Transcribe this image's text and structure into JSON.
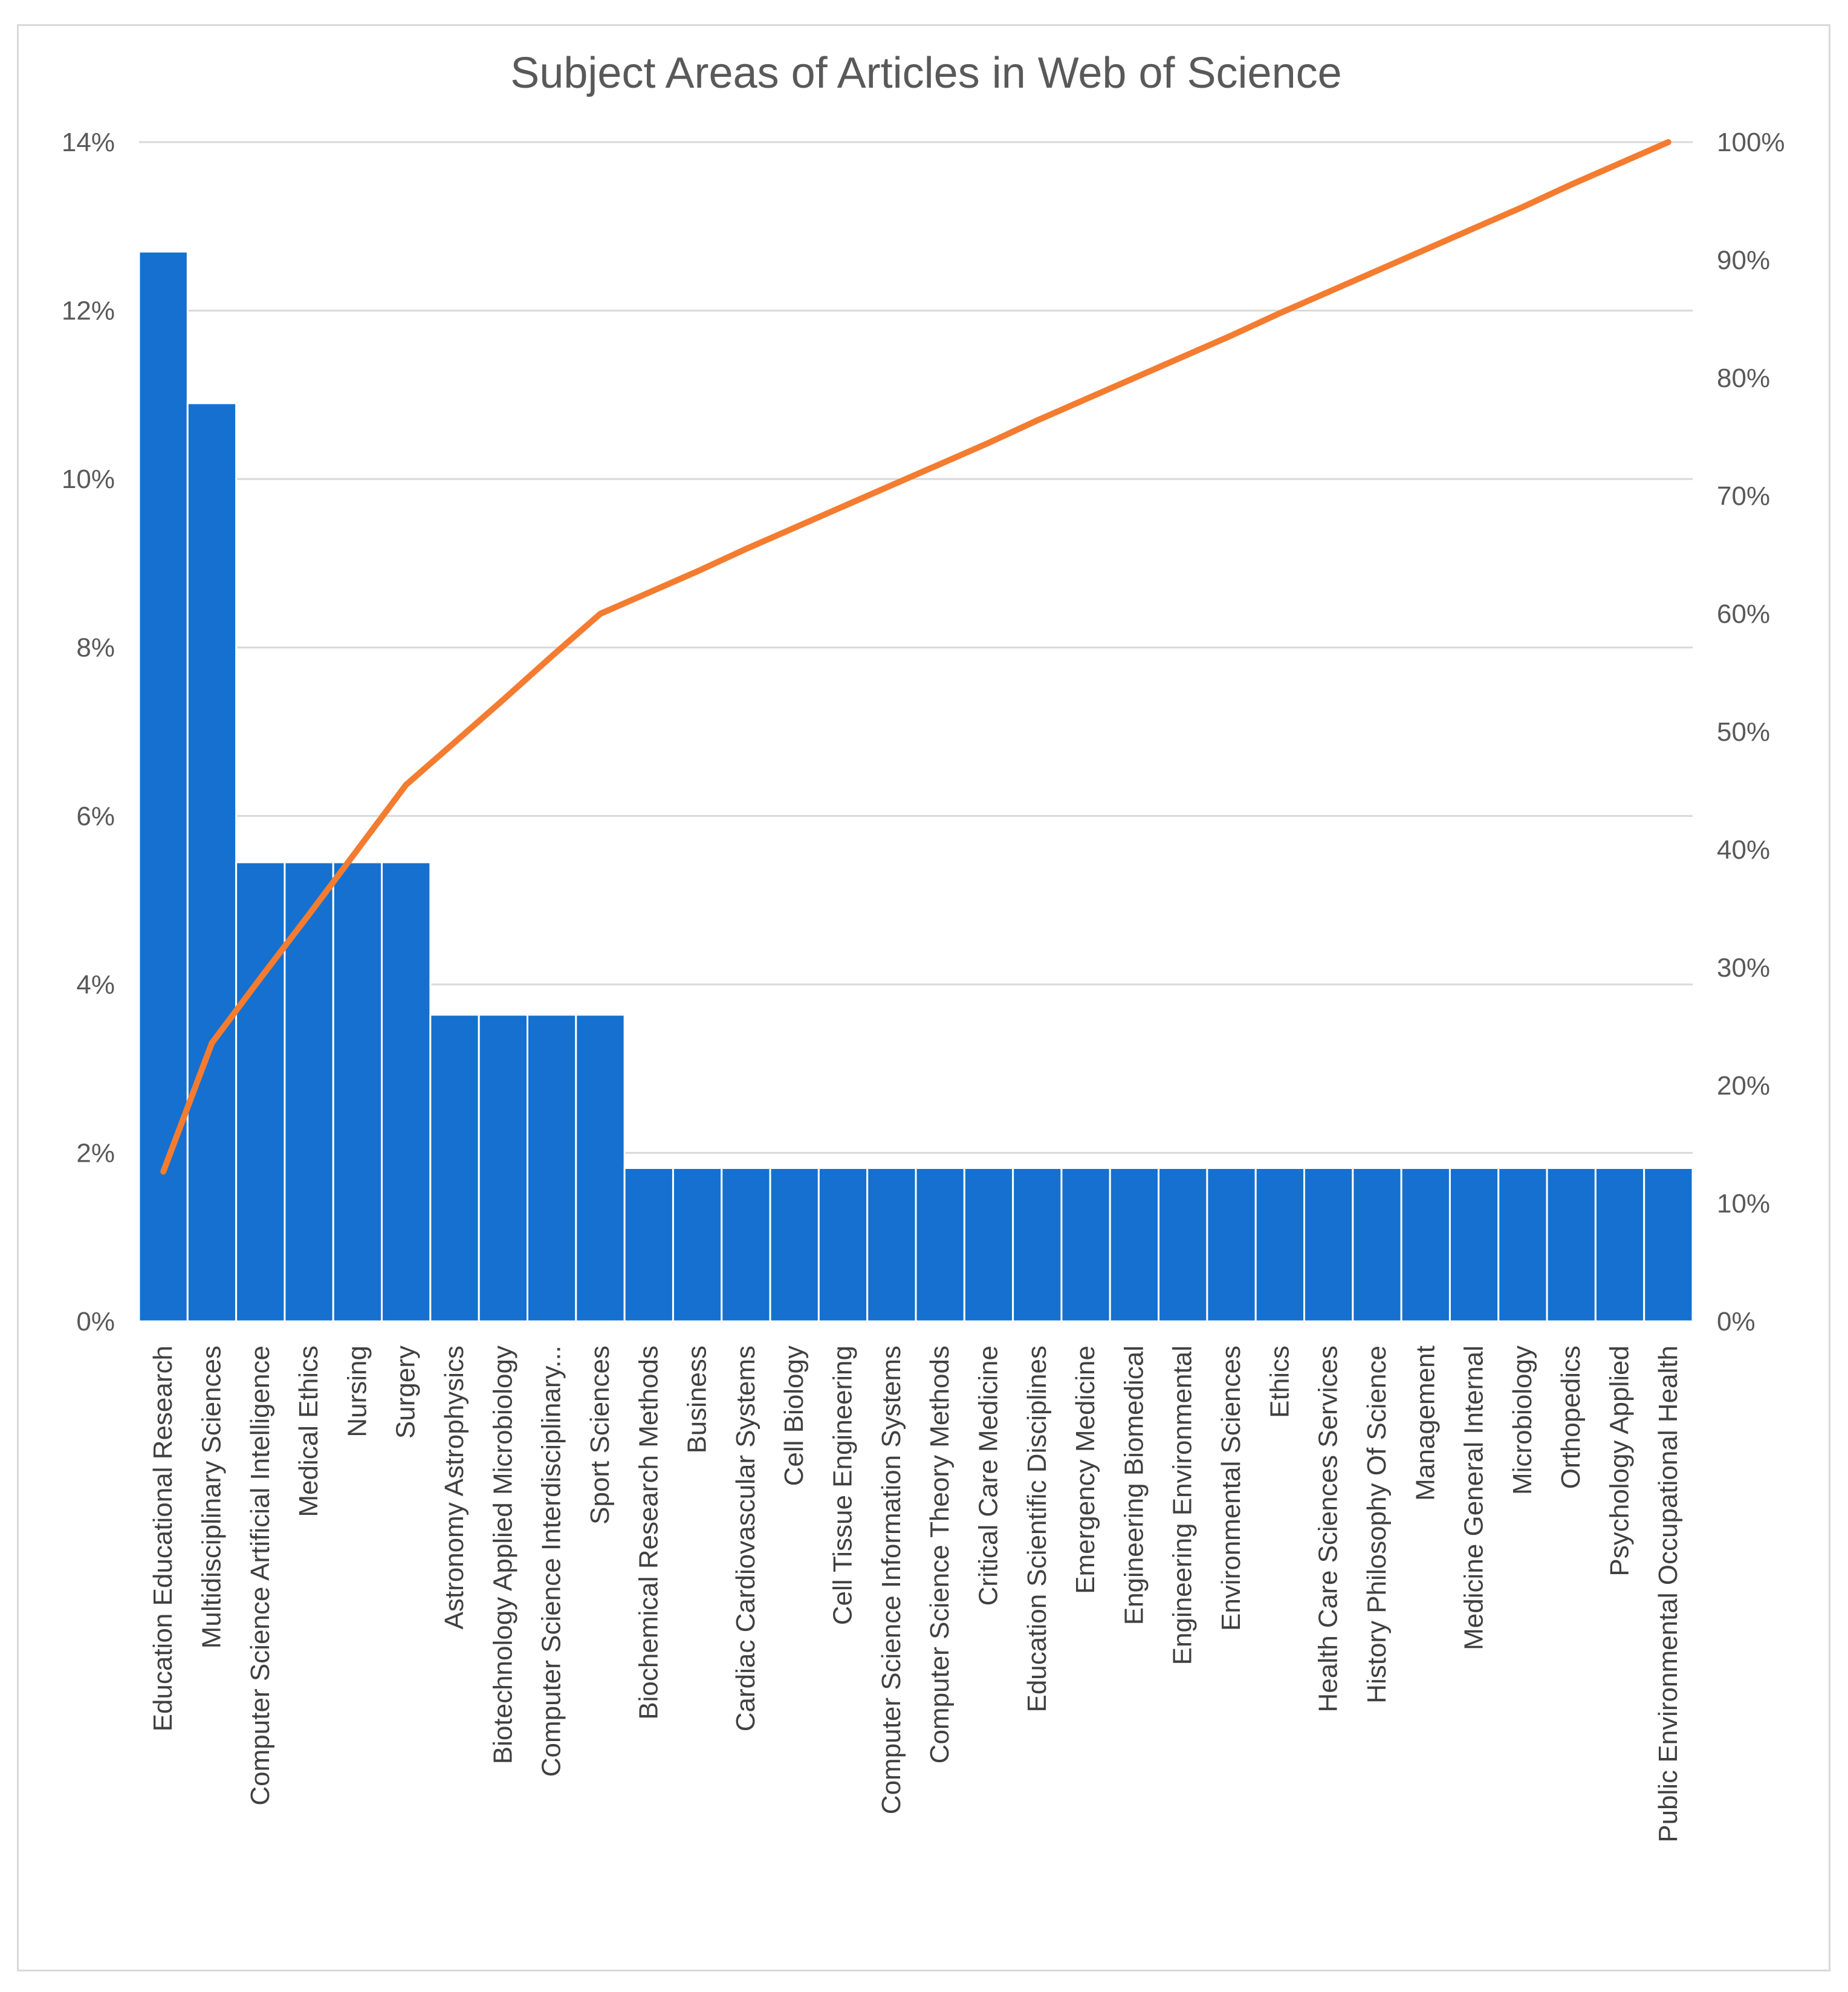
{
  "chart_data": {
    "type": "bar",
    "title": "Subject Areas of Articles in Web of Science",
    "xlabel": "",
    "ylabel": "",
    "ylim": [
      0,
      14
    ],
    "y2lim": [
      0,
      100
    ],
    "y_ticks": [
      "0%",
      "2%",
      "4%",
      "6%",
      "8%",
      "10%",
      "12%",
      "14%"
    ],
    "y2_ticks": [
      "0%",
      "10%",
      "20%",
      "30%",
      "40%",
      "50%",
      "60%",
      "70%",
      "80%",
      "90%",
      "100%"
    ],
    "grid": true,
    "legend": "none",
    "colors": {
      "bars": "#1570CF",
      "line": "#F47C30",
      "grid": "#d9d9d9"
    },
    "categories": [
      "Education Educational Research",
      "Multidisciplinary Sciences",
      "Computer Science Artificial Intelligence",
      "Medical Ethics",
      "Nursing",
      "Surgery",
      "Astronomy Astrophysics",
      "Biotechnology Applied Microbiology",
      "Computer Science Interdisciplinary...",
      "Sport Sciences",
      "Biochemical Research Methods",
      "Business",
      "Cardiac Cardiovascular Systems",
      "Cell Biology",
      "Cell Tissue Engineering",
      "Computer Science Information Systems",
      "Computer Science Theory Methods",
      "Critical Care Medicine",
      "Education Scientific Disciplines",
      "Emergency Medicine",
      "Engineering Biomedical",
      "Engineering Environmental",
      "Environmental Sciences",
      "Ethics",
      "Health Care Sciences Services",
      "History Philosophy Of Science",
      "Management",
      "Medicine General Internal",
      "Microbiology",
      "Orthopedics",
      "Psychology Applied",
      "Public Environmental Occupational Health"
    ],
    "series": [
      {
        "type": "bar",
        "axis": "left",
        "values": [
          12.7,
          10.9,
          5.45,
          5.45,
          5.45,
          5.45,
          3.64,
          3.64,
          3.64,
          3.64,
          1.82,
          1.82,
          1.82,
          1.82,
          1.82,
          1.82,
          1.82,
          1.82,
          1.82,
          1.82,
          1.82,
          1.82,
          1.82,
          1.82,
          1.82,
          1.82,
          1.82,
          1.82,
          1.82,
          1.82,
          1.82,
          1.82
        ]
      },
      {
        "type": "line",
        "axis": "right",
        "values": [
          12.7,
          23.6,
          29.1,
          34.5,
          40.0,
          45.5,
          49.1,
          52.7,
          56.4,
          60.0,
          61.8,
          63.6,
          65.5,
          67.3,
          69.1,
          70.9,
          72.7,
          74.5,
          76.4,
          78.2,
          80.0,
          81.8,
          83.6,
          85.5,
          87.3,
          89.1,
          90.9,
          92.7,
          94.5,
          96.4,
          98.2,
          100.0
        ]
      }
    ]
  }
}
